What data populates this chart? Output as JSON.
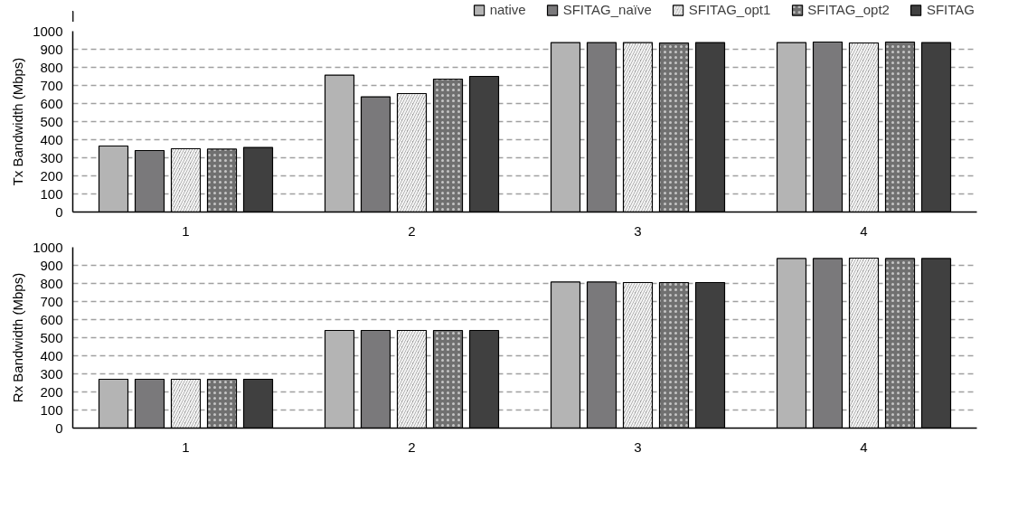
{
  "chart_data": [
    {
      "type": "bar",
      "ylabel": "Tx Bandwidth (Mbps)",
      "categories": [
        "1",
        "2",
        "3",
        "4"
      ],
      "ylim": [
        0,
        1000
      ],
      "yticks": [
        0,
        100,
        200,
        300,
        400,
        500,
        600,
        700,
        800,
        900,
        1000
      ],
      "grid": "y",
      "legend": "top right",
      "series": [
        {
          "name": "native",
          "color": "#b4b4b4",
          "values": [
            365,
            757,
            937,
            937
          ]
        },
        {
          "name": "SFITAG_naïve",
          "color": "#7a797b",
          "values": [
            340,
            637,
            937,
            940
          ]
        },
        {
          "name": "SFITAG_opt1",
          "color": "#9c9c9c",
          "values": [
            350,
            655,
            937,
            935
          ]
        },
        {
          "name": "SFITAG_opt2",
          "color": "#707070",
          "values": [
            348,
            735,
            935,
            940
          ]
        },
        {
          "name": "SFITAG",
          "color": "#404040",
          "values": [
            357,
            750,
            937,
            937
          ]
        }
      ]
    },
    {
      "type": "bar",
      "ylabel": "Rx Bandwidth (Mbps)",
      "categories": [
        "1",
        "2",
        "3",
        "4"
      ],
      "ylim": [
        0,
        1000
      ],
      "yticks": [
        0,
        100,
        200,
        300,
        400,
        500,
        600,
        700,
        800,
        900,
        1000
      ],
      "grid": "y",
      "legend": false,
      "series": [
        {
          "color": "#b4b4b4",
          "values": [
            270,
            540,
            808,
            938
          ]
        },
        {
          "color": "#7a797b",
          "values": [
            270,
            540,
            808,
            938
          ]
        },
        {
          "color": "#9c9c9c",
          "values": [
            270,
            540,
            805,
            940
          ]
        },
        {
          "color": "#707070",
          "values": [
            270,
            540,
            805,
            938
          ]
        },
        {
          "color": "#404040",
          "values": [
            270,
            540,
            805,
            938
          ]
        }
      ]
    }
  ]
}
